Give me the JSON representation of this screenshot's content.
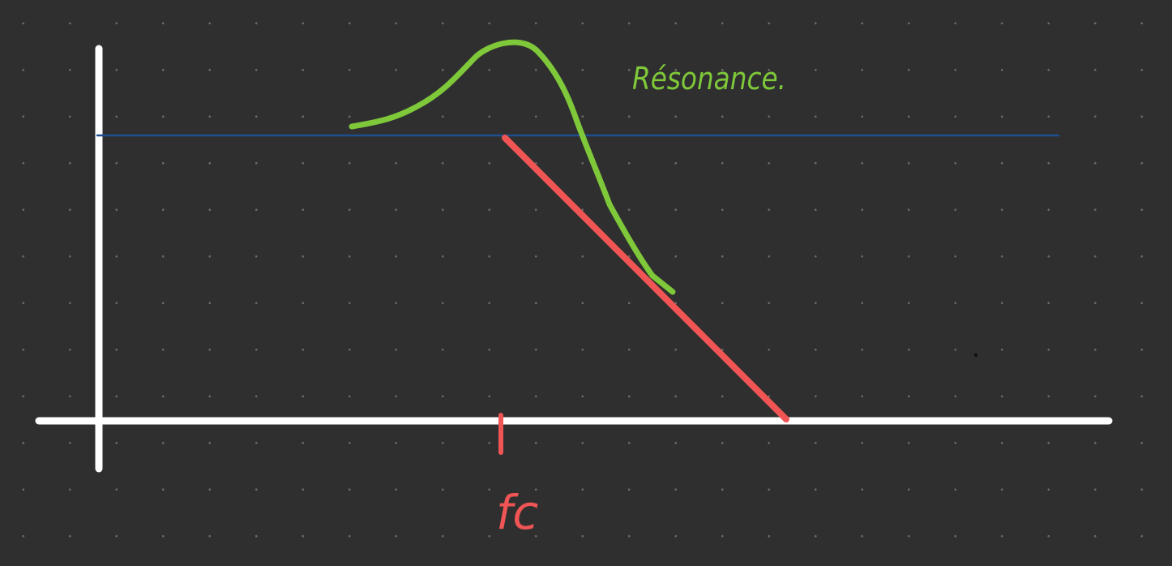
{
  "annotations": {
    "resonance_label": "Résonance.",
    "cutoff_label": "fc"
  },
  "colors": {
    "background": "#2f2f2f",
    "grid_dots": "#6a6a6a",
    "axes": "#ffffff",
    "reference_line": "#1f4f8f",
    "asymptote": "#f05454",
    "resonance_curve": "#7ec83a"
  },
  "strokes": {
    "axes": "white",
    "reference": "blue",
    "asymptote": "red",
    "resonance_curve": "green"
  }
}
